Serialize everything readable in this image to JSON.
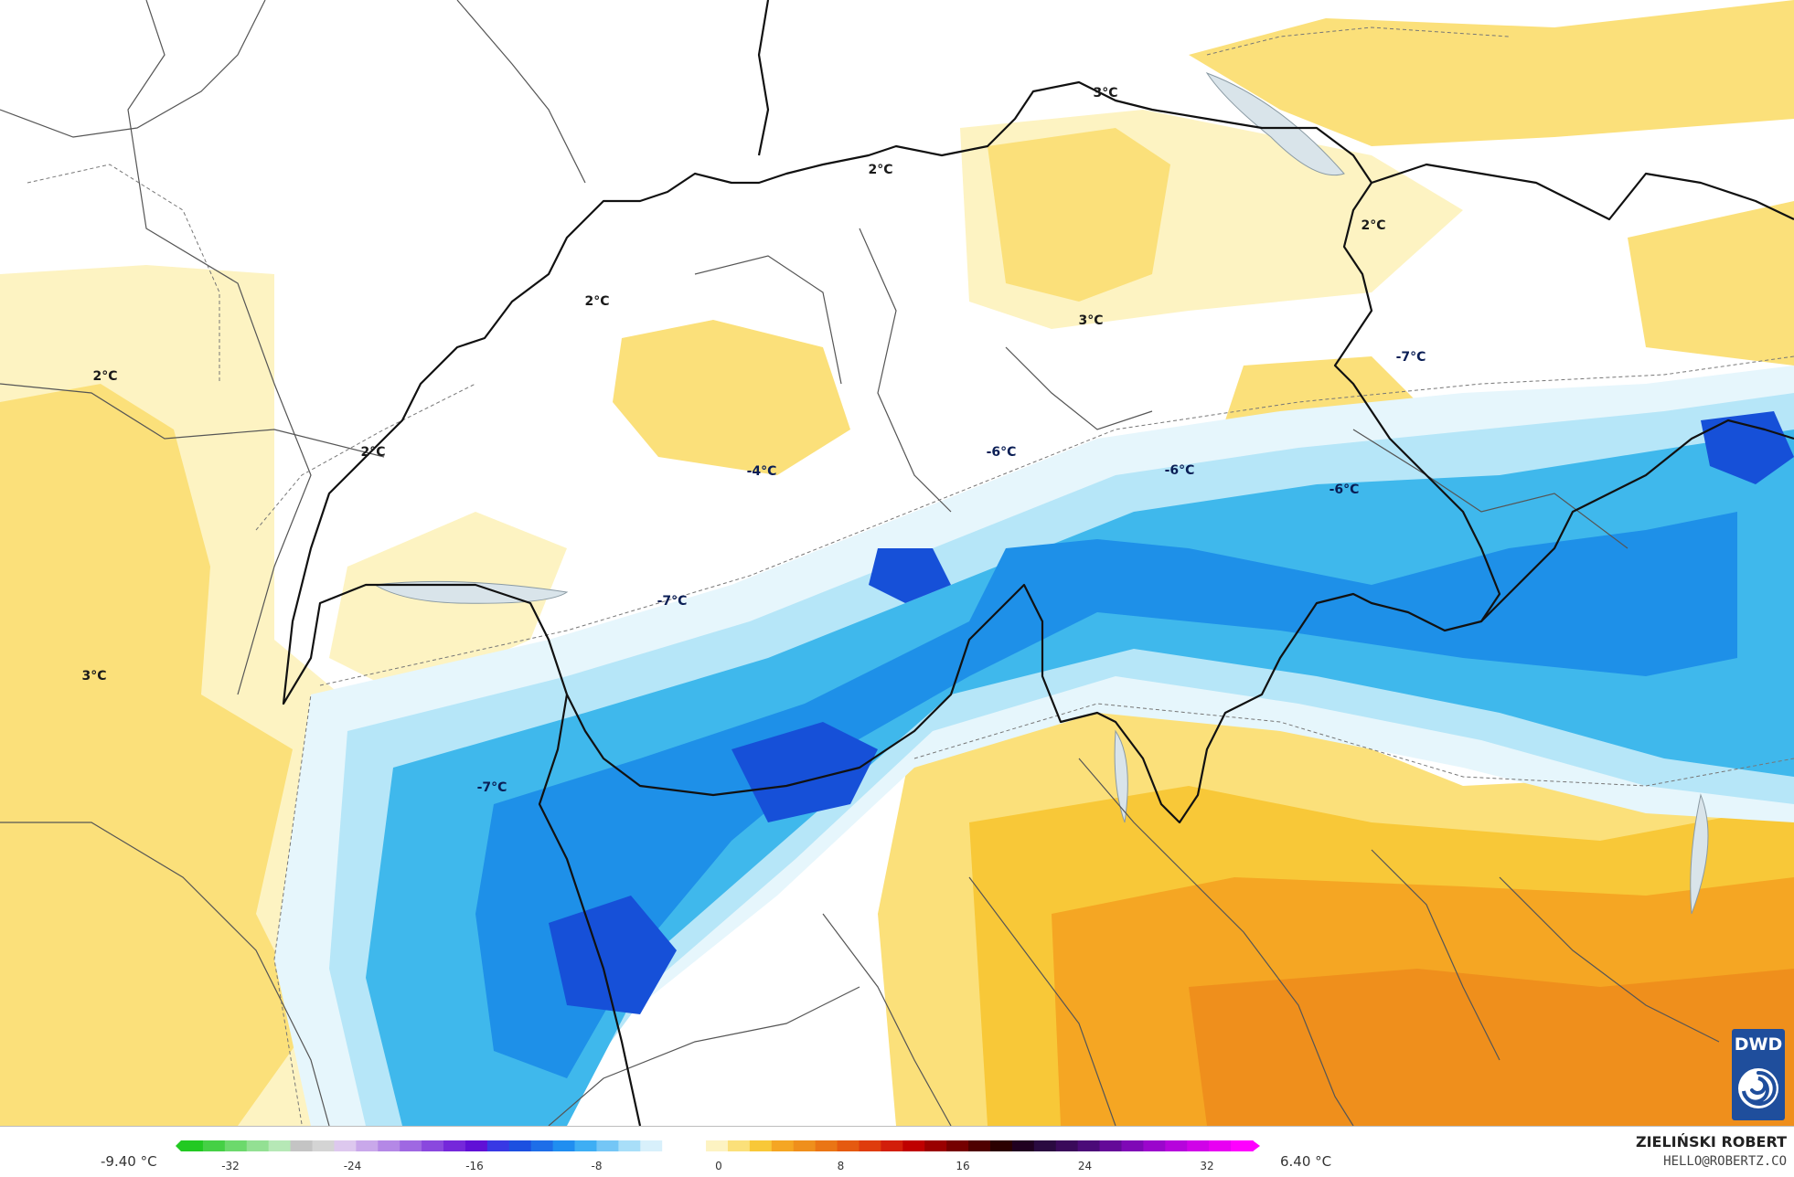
{
  "map": {
    "labels": [
      {
        "text": "3°C",
        "kind": "warm"
      },
      {
        "text": "2°C",
        "kind": "warm"
      },
      {
        "text": "2°C",
        "kind": "warm"
      },
      {
        "text": "2°C",
        "kind": "warm"
      },
      {
        "text": "2°C",
        "kind": "warm"
      },
      {
        "text": "2°C",
        "kind": "warm"
      },
      {
        "text": "3°C",
        "kind": "warm"
      },
      {
        "text": "3°C",
        "kind": "warm"
      },
      {
        "text": "-4°C",
        "kind": "cold"
      },
      {
        "text": "-6°C",
        "kind": "cold"
      },
      {
        "text": "-6°C",
        "kind": "cold"
      },
      {
        "text": "-6°C",
        "kind": "cold"
      },
      {
        "text": "-7°C",
        "kind": "cold"
      },
      {
        "text": "-7°C",
        "kind": "cold"
      },
      {
        "text": "-7°C",
        "kind": "cold"
      }
    ],
    "colors": {
      "warm_light": "#fdf3c2",
      "warm": "#fbe07a",
      "warm_deep": "#f8c838",
      "orange": "#f5a623",
      "orange_deep": "#ef8f1c",
      "cold_pale": "#e6f6fc",
      "cold_light": "#b6e6f8",
      "cold": "#3fb8ec",
      "cold_mid": "#1e90e8",
      "cold_deep": "#1650d8"
    }
  },
  "logo": {
    "text": "DWD",
    "icon": "dwd-swirl-icon"
  },
  "legend": {
    "min_label": "-9.40 °C",
    "max_label": "6.40 °C",
    "ticks": [
      "-32",
      "-24",
      "-16",
      "-8",
      "0",
      "8",
      "16",
      "24",
      "32"
    ],
    "author": "ZIELIŃSKI ROBERT",
    "email": "HELLO@ROBERTZ.CO"
  }
}
